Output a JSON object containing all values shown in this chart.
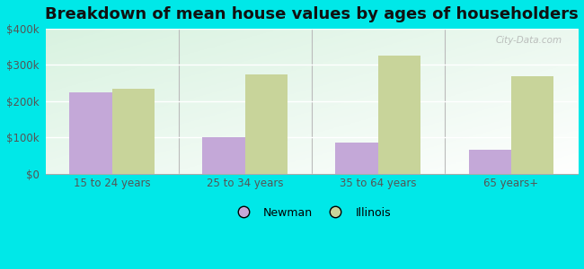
{
  "title": "Breakdown of mean house values by ages of householders",
  "categories": [
    "15 to 24 years",
    "25 to 34 years",
    "35 to 64 years",
    "65 years+"
  ],
  "newman_values": [
    225000,
    100000,
    85000,
    65000
  ],
  "illinois_values": [
    235000,
    275000,
    325000,
    270000
  ],
  "newman_color": "#c4a8d8",
  "illinois_color": "#c8d49a",
  "background_color": "#00e8e8",
  "ylim": [
    0,
    400000
  ],
  "yticks": [
    0,
    100000,
    200000,
    300000,
    400000
  ],
  "ytick_labels": [
    "$0",
    "$100k",
    "$200k",
    "$300k",
    "$400k"
  ],
  "bar_width": 0.32,
  "title_fontsize": 13,
  "tick_fontsize": 8.5,
  "legend_fontsize": 9,
  "watermark": "City-Data.com"
}
